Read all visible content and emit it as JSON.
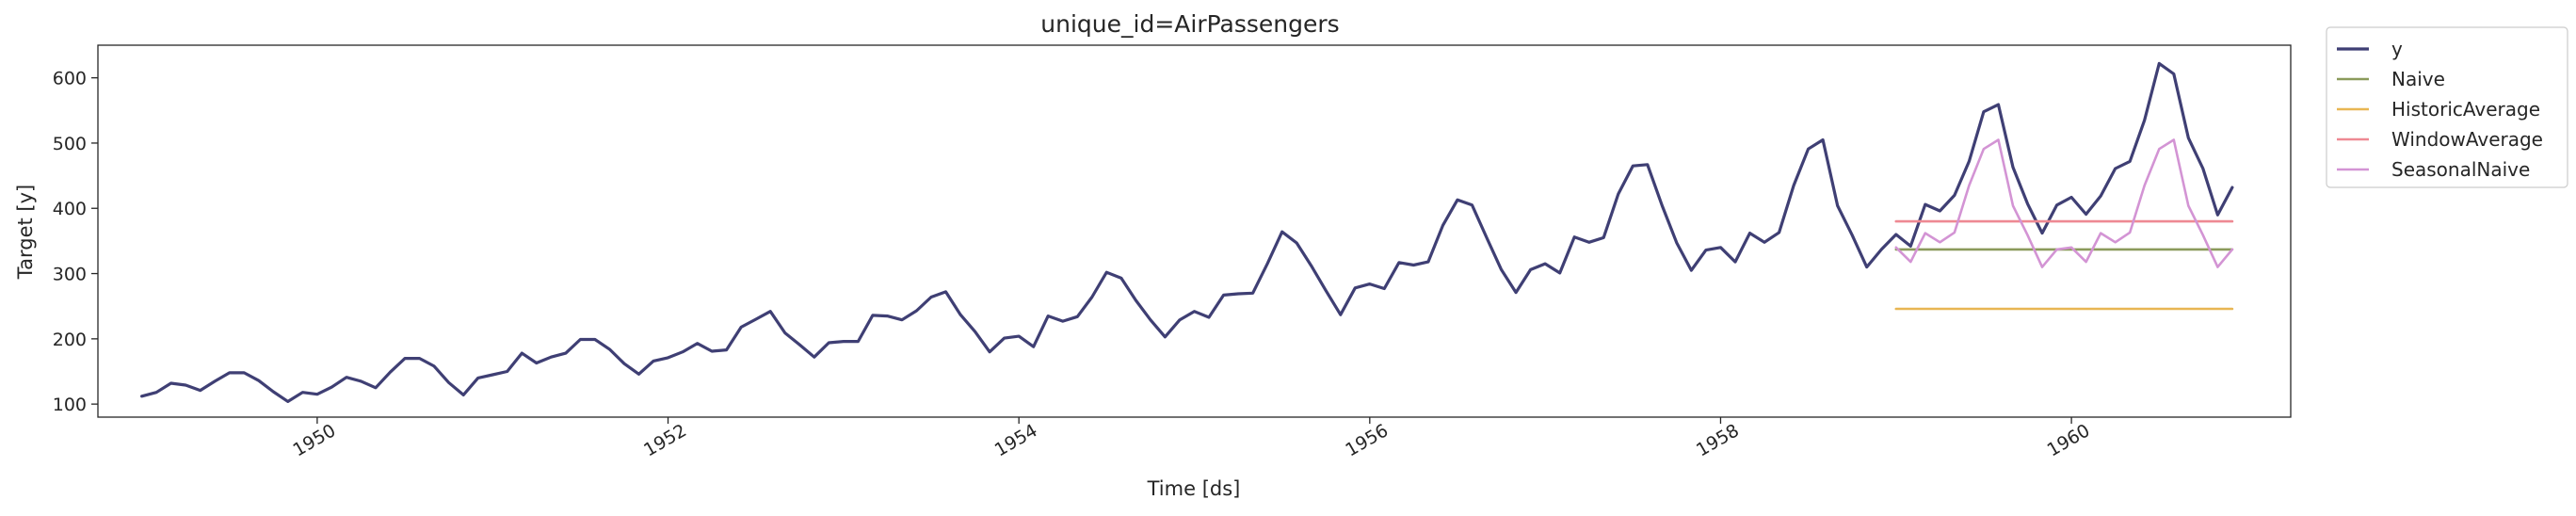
{
  "chart_data": {
    "type": "line",
    "title": "unique_id=AirPassengers",
    "xlabel": "Time [ds]",
    "ylabel": "Target [y]",
    "xlim": [
      1948.75,
      1961.25
    ],
    "ylim": [
      80,
      650
    ],
    "x_ticks": [
      1950,
      1952,
      1954,
      1956,
      1958,
      1960
    ],
    "x_tick_labels": [
      "1950",
      "1952",
      "1954",
      "1956",
      "1958",
      "1960"
    ],
    "y_ticks": [
      100,
      200,
      300,
      400,
      500,
      600
    ],
    "y_tick_labels": [
      "100",
      "200",
      "300",
      "400",
      "500",
      "600"
    ],
    "grid": false,
    "legend_position": "outside-top-right",
    "series": [
      {
        "name": "y",
        "color": "#3f3f74",
        "start": 1949.0,
        "step_years": 0.0833333,
        "values": [
          112,
          118,
          132,
          129,
          121,
          135,
          148,
          148,
          136,
          119,
          104,
          118,
          115,
          126,
          141,
          135,
          125,
          149,
          170,
          170,
          158,
          133,
          114,
          140,
          145,
          150,
          178,
          163,
          172,
          178,
          199,
          199,
          184,
          162,
          146,
          166,
          171,
          180,
          193,
          181,
          183,
          218,
          230,
          242,
          209,
          191,
          172,
          194,
          196,
          196,
          236,
          235,
          229,
          243,
          264,
          272,
          237,
          211,
          180,
          201,
          204,
          188,
          235,
          227,
          234,
          264,
          302,
          293,
          259,
          229,
          203,
          229,
          242,
          233,
          267,
          269,
          270,
          315,
          364,
          347,
          312,
          274,
          237,
          278,
          284,
          277,
          317,
          313,
          318,
          374,
          413,
          405,
          355,
          306,
          271,
          306,
          315,
          301,
          356,
          348,
          355,
          422,
          465,
          467,
          404,
          347,
          305,
          336,
          340,
          318,
          362,
          348,
          363,
          435,
          491,
          505,
          404,
          359,
          310,
          337,
          360,
          342,
          406,
          396,
          420,
          472,
          548,
          559,
          463,
          407,
          362,
          405,
          417,
          391,
          419,
          461,
          472,
          535,
          622,
          606,
          508,
          461,
          390,
          432
        ]
      },
      {
        "name": "Naive",
        "color": "#8b9a5b",
        "start": 1959.0,
        "step_years": 0.0833333,
        "values": [
          337,
          337,
          337,
          337,
          337,
          337,
          337,
          337,
          337,
          337,
          337,
          337,
          337,
          337,
          337,
          337,
          337,
          337,
          337,
          337,
          337,
          337,
          337,
          337
        ]
      },
      {
        "name": "HistoricAverage",
        "color": "#e8b653",
        "start": 1959.0,
        "step_years": 0.0833333,
        "values": [
          246,
          246,
          246,
          246,
          246,
          246,
          246,
          246,
          246,
          246,
          246,
          246,
          246,
          246,
          246,
          246,
          246,
          246,
          246,
          246,
          246,
          246,
          246,
          246
        ]
      },
      {
        "name": "WindowAverage",
        "color": "#ee8993",
        "start": 1959.0,
        "step_years": 0.0833333,
        "values": [
          380,
          380,
          380,
          380,
          380,
          380,
          380,
          380,
          380,
          380,
          380,
          380,
          380,
          380,
          380,
          380,
          380,
          380,
          380,
          380,
          380,
          380,
          380,
          380
        ]
      },
      {
        "name": "SeasonalNaive",
        "color": "#d394d4",
        "start": 1959.0,
        "step_years": 0.0833333,
        "values": [
          340,
          318,
          362,
          348,
          363,
          435,
          491,
          505,
          404,
          359,
          310,
          337,
          340,
          318,
          362,
          348,
          363,
          435,
          491,
          505,
          404,
          359,
          310,
          337
        ]
      }
    ]
  }
}
